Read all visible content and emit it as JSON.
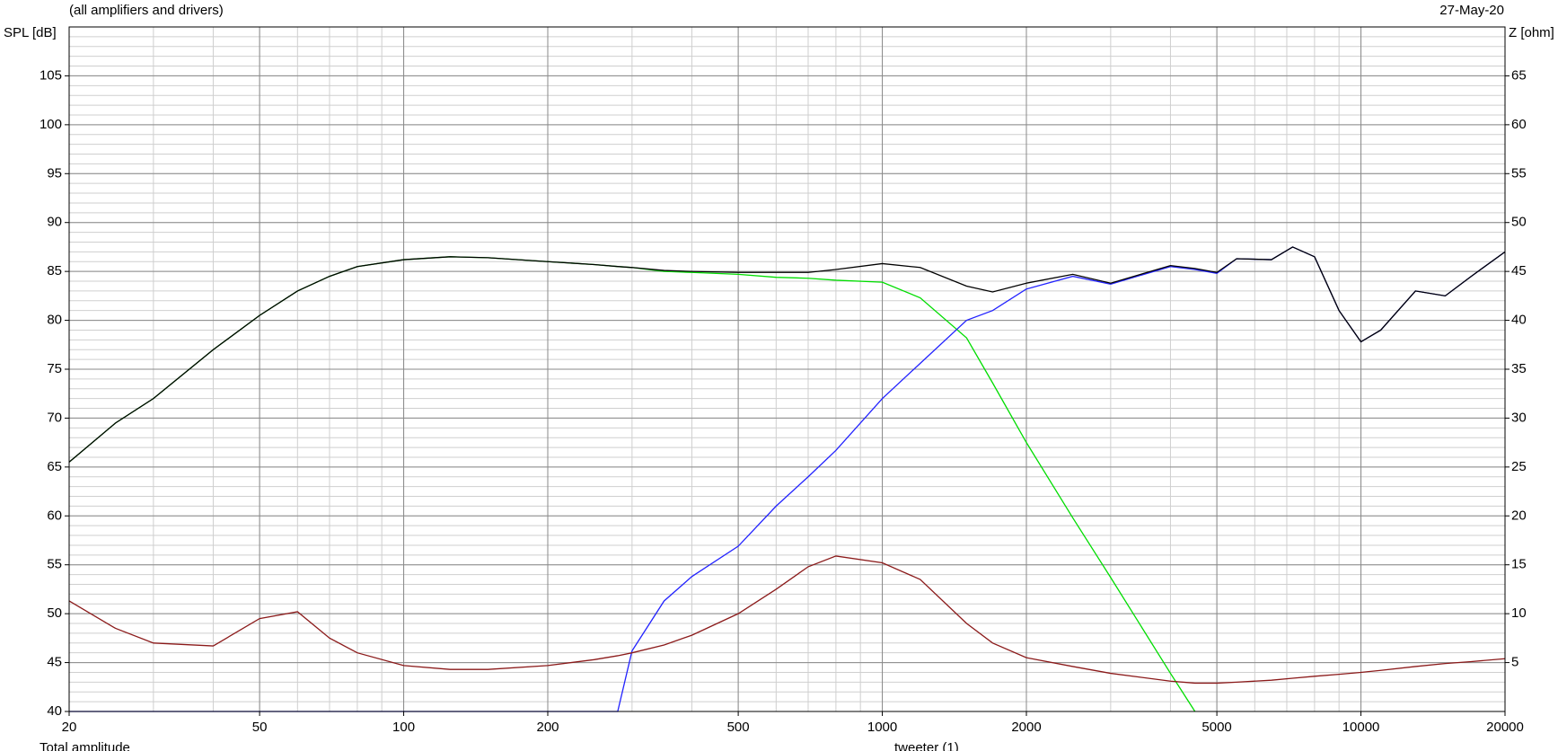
{
  "chart_data": {
    "type": "line",
    "subtitle": "(all amplifiers and drivers)",
    "date": "27-May-20",
    "y_label": "SPL [dB]",
    "y2_label": "Z [ohm]",
    "log_x": true,
    "grid": true,
    "minor_grid": true,
    "x": [
      20,
      25,
      30,
      40,
      50,
      60,
      70,
      80,
      100,
      125,
      150,
      200,
      250,
      280,
      300,
      350,
      400,
      500,
      600,
      700,
      800,
      1000,
      1200,
      1500,
      1700,
      2000,
      2500,
      3000,
      4000,
      4500,
      5000,
      5500,
      6500,
      7200,
      8000,
      9000,
      10000,
      11000,
      13000,
      15000,
      17000,
      20000
    ],
    "xlim": [
      20,
      20000
    ],
    "xticks": [
      20,
      50,
      100,
      200,
      500,
      1000,
      2000,
      5000,
      10000,
      20000
    ],
    "ylim": [
      40,
      110
    ],
    "yticks": [
      40,
      45,
      50,
      55,
      60,
      65,
      70,
      75,
      80,
      85,
      90,
      95,
      100,
      105
    ],
    "y2lim": [
      0,
      70
    ],
    "y2ticks": [
      5,
      10,
      15,
      20,
      25,
      30,
      35,
      40,
      45,
      50,
      55,
      60,
      65
    ],
    "series": [
      {
        "color": "#00dd00",
        "values": [
          65.5,
          69.5,
          72,
          77,
          80.5,
          83,
          84.5,
          85.5,
          86.2,
          86.5,
          86.4,
          86,
          85.7,
          85.5,
          85.4,
          85.0,
          84.9,
          84.7,
          84.4,
          84.3,
          84.1,
          83.9,
          82.3,
          78.2,
          73.6,
          67.5,
          59.8,
          53.7,
          43.9,
          40,
          null,
          null,
          null,
          null,
          null,
          null,
          null,
          null,
          null,
          null,
          null,
          null
        ]
      },
      {
        "name": "tweeter (1)",
        "color": "#2222ff",
        "values": [
          40,
          40,
          40,
          40,
          40,
          40,
          40,
          40,
          40,
          40,
          40,
          40,
          40,
          40,
          46.2,
          51.3,
          53.8,
          56.9,
          61,
          64,
          66.7,
          72,
          75.6,
          80,
          81,
          83.2,
          84.5,
          83.7,
          85.5,
          85.2,
          84.8,
          86.3,
          86.2,
          87.5,
          86.5,
          81,
          77.8,
          79,
          83,
          82.5,
          84.5,
          87
        ]
      },
      {
        "name": "Total amplitude",
        "color": "#000000",
        "values": [
          65.5,
          69.5,
          72,
          77,
          80.5,
          83,
          84.5,
          85.5,
          86.2,
          86.5,
          86.4,
          86,
          85.7,
          85.5,
          85.4,
          85.1,
          85.0,
          84.9,
          84.9,
          84.9,
          85.2,
          85.8,
          85.4,
          83.5,
          82.9,
          83.8,
          84.7,
          83.8,
          85.6,
          85.3,
          84.9,
          86.3,
          86.2,
          87.5,
          86.5,
          81,
          77.8,
          79,
          83,
          82.5,
          84.5,
          87
        ]
      },
      {
        "color": "#8b1a1a",
        "axis": "y2",
        "values": [
          11.3,
          8.5,
          7,
          6.7,
          9.5,
          10.2,
          7.5,
          6,
          4.7,
          4.3,
          4.3,
          4.7,
          5.3,
          5.7,
          6,
          6.8,
          7.8,
          10,
          12.5,
          14.8,
          15.9,
          15.2,
          13.5,
          9,
          7,
          5.5,
          4.6,
          3.9,
          3.1,
          2.9,
          2.9,
          3,
          3.2,
          3.4,
          3.6,
          3.8,
          4,
          4.2,
          4.6,
          4.9,
          5.1,
          5.4
        ]
      }
    ]
  }
}
